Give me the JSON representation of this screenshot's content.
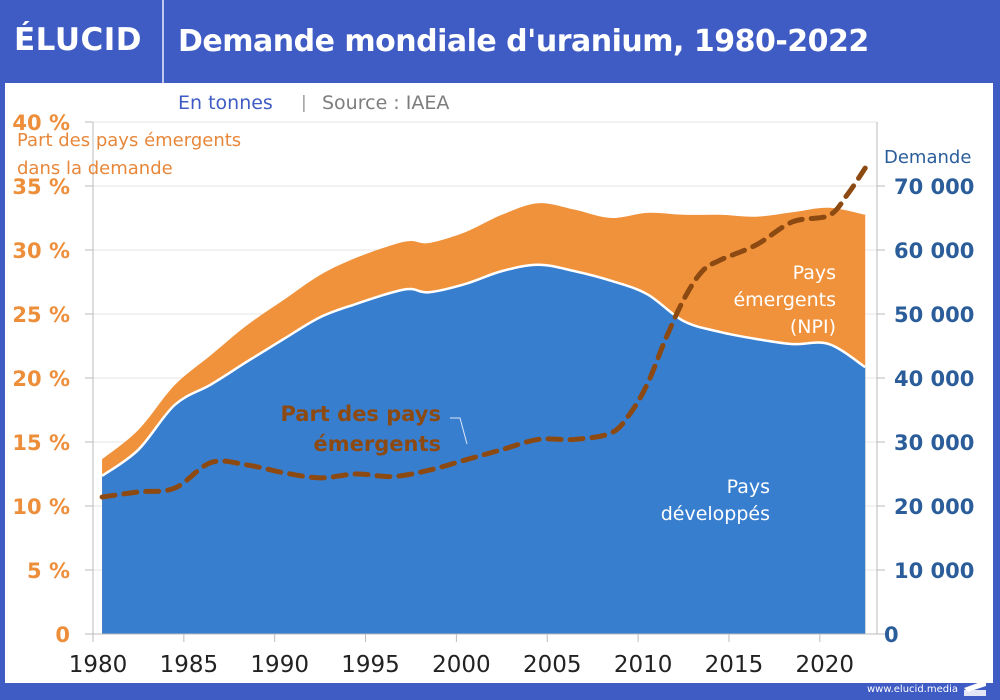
{
  "header": {
    "logo": "ÉLUCID",
    "title": "Demande mondiale d'uranium, 1980-2022"
  },
  "subtitle": {
    "unit": "En tonnes",
    "separator": "|",
    "source": "Source : IAEA"
  },
  "footer": {
    "url": "www.elucid.media"
  },
  "colors": {
    "brand_blue": "#3f5bc4",
    "developed": "#377ecf",
    "emerging": "#f0923b",
    "share_line": "#8c4a12",
    "left_axis": "#ec8e3a",
    "right_axis": "#2a5d9a"
  },
  "chart_data": {
    "type": "area",
    "title": "Demande mondiale d'uranium, 1980-2022",
    "subtitle": "En tonnes | Source : IAEA",
    "x": [
      1980,
      1982,
      1984,
      1986,
      1988,
      1990,
      1992,
      1994,
      1996,
      1997,
      1998,
      2000,
      2002,
      2004,
      2006,
      2008,
      2010,
      2012,
      2014,
      2016,
      2018,
      2020,
      2022
    ],
    "series": [
      {
        "name": "Pays développés",
        "type": "area",
        "axis": "right",
        "values": [
          24700,
          28800,
          35800,
          39000,
          42600,
          46100,
          49500,
          51600,
          53400,
          53900,
          53400,
          54700,
          56700,
          57700,
          56700,
          55200,
          53100,
          48900,
          47200,
          46100,
          45300,
          45300,
          41700
        ]
      },
      {
        "name": "Pays émergents (NPI)",
        "type": "area",
        "axis": "right",
        "values": [
          2600,
          3100,
          3100,
          4600,
          5700,
          6100,
          6600,
          7200,
          7400,
          7500,
          7700,
          8100,
          8800,
          9600,
          9600,
          9800,
          12700,
          16600,
          18300,
          19100,
          20600,
          21300,
          23800
        ]
      },
      {
        "name": "Part des pays émergents dans la demande",
        "type": "line",
        "axis": "left",
        "unit": "%",
        "x": [
          1980,
          1982,
          1984,
          1986,
          1988,
          1990,
          1992,
          1994,
          1996,
          1998,
          2000,
          2002,
          2004,
          2006,
          2008,
          2009,
          2010,
          2011,
          2012,
          2013,
          2014,
          2016,
          2018,
          2020,
          2021,
          2022
        ],
        "values": [
          10.7,
          11.1,
          11.4,
          13.4,
          13.2,
          12.6,
          12.2,
          12.5,
          12.3,
          12.8,
          13.6,
          14.4,
          15.2,
          15.2,
          15.7,
          17.1,
          19.5,
          23.0,
          26.1,
          28.3,
          29.2,
          30.4,
          32.2,
          32.7,
          34.3,
          36.4
        ]
      }
    ],
    "left_axis": {
      "label": "Part des pays émergents dans la demande",
      "range": [
        0,
        40
      ],
      "ticks": [
        "0",
        "5 %",
        "10 %",
        "15 %",
        "20 %",
        "25 %",
        "30 %",
        "35 %",
        "40 %"
      ]
    },
    "right_axis": {
      "label": "Demande",
      "range": [
        0,
        70000
      ],
      "ticks": [
        "0",
        "10 000",
        "20 000",
        "30 000",
        "40 000",
        "50 000",
        "60 000",
        "70 000"
      ]
    },
    "x_axis": {
      "range": [
        1980,
        2022
      ],
      "ticks": [
        "1980",
        "1985",
        "1990",
        "1995",
        "2000",
        "2005",
        "2010",
        "2015",
        "2020"
      ]
    },
    "grid": true,
    "annotations": {
      "share_label": [
        "Part des pays",
        "émergents"
      ],
      "emerging_label": [
        "Pays",
        "émergents",
        "(NPI)"
      ],
      "developed_label": [
        "Pays",
        "développés"
      ]
    }
  }
}
